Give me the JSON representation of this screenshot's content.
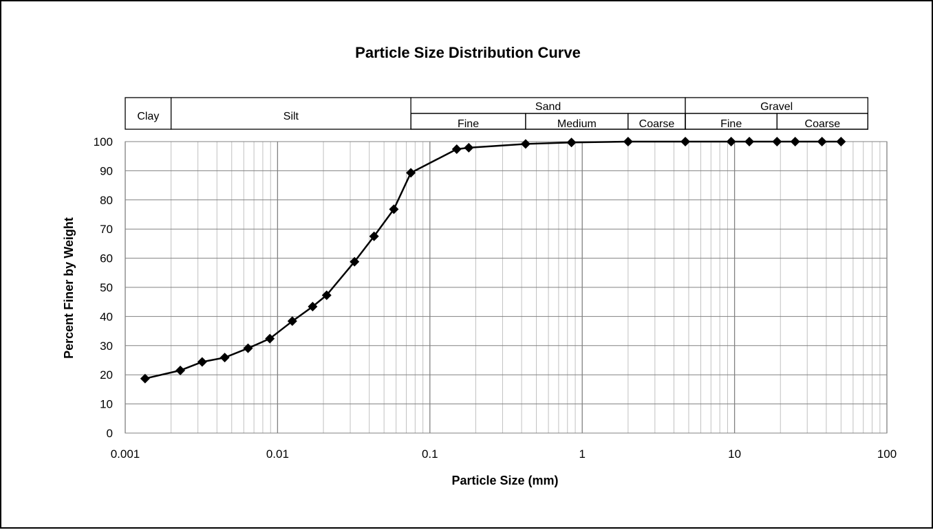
{
  "chart_data": {
    "type": "scatter",
    "title": "Particle Size Distribution Curve",
    "xlabel": "Particle Size (mm)",
    "ylabel": "Percent Finer by Weight",
    "xscale": "log",
    "xlim": [
      0.001,
      100
    ],
    "ylim": [
      0,
      100
    ],
    "grid": true,
    "x_ticks": [
      "0.001",
      "0.01",
      "0.1",
      "1",
      "10",
      "100"
    ],
    "y_ticks": [
      "0",
      "10",
      "20",
      "30",
      "40",
      "50",
      "60",
      "70",
      "80",
      "90",
      "100"
    ],
    "series": [
      {
        "style": "line-with-diamond-markers",
        "x": [
          0.00135,
          0.0023,
          0.0032,
          0.0045,
          0.0064,
          0.0089,
          0.0125,
          0.017,
          0.021,
          0.032,
          0.043,
          0.058,
          0.075,
          0.15,
          0.18,
          0.425,
          0.85,
          2.0,
          4.75,
          9.5,
          12.5,
          19.0,
          25.0,
          37.5,
          50.0
        ],
        "y": [
          18.7,
          21.5,
          24.4,
          25.9,
          29.1,
          32.4,
          38.4,
          43.4,
          47.3,
          58.8,
          67.5,
          76.8,
          89.3,
          97.4,
          97.9,
          99.2,
          99.7,
          100,
          100,
          100,
          100,
          100,
          100,
          100,
          100
        ]
      }
    ],
    "soil_classification": {
      "top_row": [
        {
          "label": "Clay",
          "from": 0.001,
          "to": 0.002
        },
        {
          "label": "Silt",
          "from": 0.002,
          "to": 0.075
        },
        {
          "label": "Sand",
          "from": 0.075,
          "to": 4.75
        },
        {
          "label": "Gravel",
          "from": 4.75,
          "to": 75
        }
      ],
      "sub_row": [
        {
          "label": "Fine",
          "from": 0.075,
          "to": 0.425
        },
        {
          "label": "Medium",
          "from": 0.425,
          "to": 2.0
        },
        {
          "label": "Coarse",
          "from": 2.0,
          "to": 4.75
        },
        {
          "label": "Fine",
          "from": 4.75,
          "to": 19.0
        },
        {
          "label": "Coarse",
          "from": 19.0,
          "to": 75
        }
      ]
    }
  }
}
